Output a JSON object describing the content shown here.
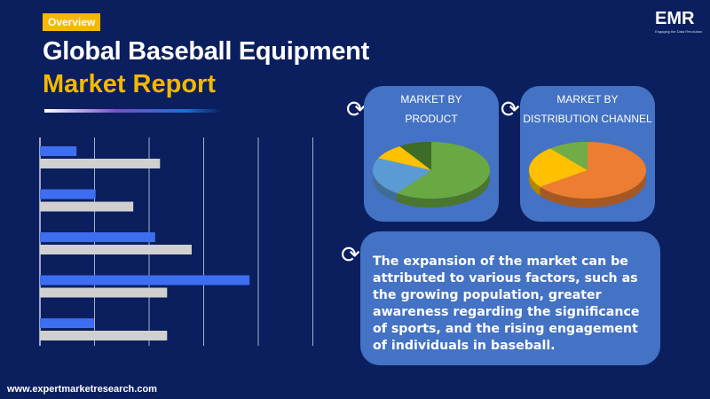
{
  "header": {
    "badge": "Overview",
    "title_line1": "Global Baseball Equipment",
    "title_line2": "Market Report",
    "logo": "EMR",
    "logo_tagline": "Engaging the Data Revolution"
  },
  "colors": {
    "background": "#0b1f5e",
    "accent": "#f5b800",
    "card": "#4472c4",
    "bar_primary": "#3d6ef0",
    "bar_secondary": "#d0d0d0"
  },
  "chart_data": [
    {
      "type": "bar",
      "orientation": "horizontal",
      "grid": true,
      "xlim": [
        0,
        5
      ],
      "series": [
        {
          "values": [
            0.67,
            1.02,
            2.11,
            3.84,
            0.99
          ]
        },
        {
          "values": [
            2.2,
            1.71,
            2.78,
            2.33,
            2.33
          ]
        }
      ]
    },
    {
      "type": "pie",
      "title": "MARKET BY PRODUCT",
      "values": [
        60,
        22,
        9,
        9
      ],
      "colors": [
        "#6aa843",
        "#5b9bd5",
        "#ffc000",
        "#3e6b26"
      ]
    },
    {
      "type": "pie",
      "title": "MARKET BY DISTRIBUTION CHANNEL",
      "values": [
        65,
        24,
        11
      ],
      "colors": [
        "#ed7d31",
        "#ffc000",
        "#70ad47"
      ]
    }
  ],
  "cards": {
    "product_l1": "MARKET BY",
    "product_l2": "PRODUCT",
    "dist_l1": "MARKET BY",
    "dist_l2": "DISTRIBUTION CHANNEL"
  },
  "description": "The expansion of the market can be attributed to various factors, such as the growing population, greater awareness regarding the significance of sports, and the rising engagement of individuals in baseball.",
  "footer": {
    "website": "www.expertmarketresearch.com"
  }
}
